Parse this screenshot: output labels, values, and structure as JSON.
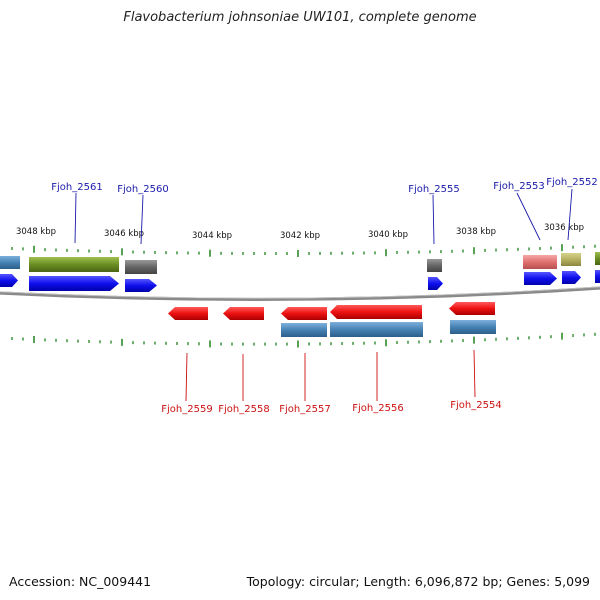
{
  "title": "Flavobacterium johnsoniae UW101, complete genome",
  "footer": {
    "accession": "Accession: NC_009441",
    "summary": "Topology: circular; Length: 6,096,872 bp; Genes: 5,099"
  },
  "colors": {
    "top_label": "#1a1aaa",
    "bottom_label": "#cc1111",
    "backbone": "#8a8a8a",
    "tick": "#2e8b2e",
    "gene_blue": "#1010ee",
    "gene_red": "#ee1111",
    "olive": "#6b8e23",
    "gray": "#666666",
    "steel": "#4682b4",
    "pink": "#e88080",
    "khaki": "#b5b060"
  },
  "kbp_labels": [
    "3048 kbp",
    "3046 kbp",
    "3044 kbp",
    "3042 kbp",
    "3040 kbp",
    "3038 kbp",
    "3036 kbp"
  ],
  "top_genes": [
    "Fjoh_2561",
    "Fjoh_2560",
    "Fjoh_2555",
    "Fjoh_2553",
    "Fjoh_2552"
  ],
  "bottom_genes": [
    "Fjoh_2559",
    "Fjoh_2558",
    "Fjoh_2557",
    "Fjoh_2556",
    "Fjoh_2554"
  ]
}
